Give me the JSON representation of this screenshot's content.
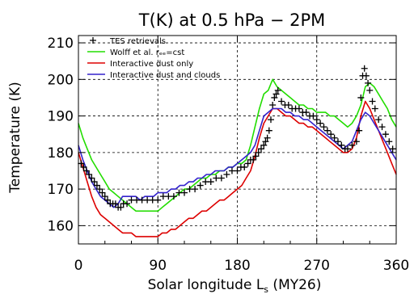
{
  "chart_data": {
    "type": "line",
    "title": "T(K) at 0.5 hPa − 2PM",
    "xlabel": "Solar longitude L",
    "xlabel_sub": "s",
    "xlabel_suffix": " (MY26)",
    "ylabel": "Temperature (K)",
    "xlim": [
      0,
      360
    ],
    "ylim": [
      155,
      212
    ],
    "xticks": [
      0,
      90,
      180,
      270,
      360
    ],
    "yticks": [
      160,
      170,
      180,
      190,
      200,
      210
    ],
    "grid": true,
    "legend_position": "top-left",
    "series": [
      {
        "name": "TES retrievals",
        "marker": "+",
        "color": "#000000",
        "x": [
          3,
          6,
          9,
          12,
          15,
          18,
          21,
          24,
          27,
          30,
          33,
          36,
          39,
          42,
          45,
          48,
          51,
          55,
          60,
          66,
          72,
          78,
          84,
          90,
          96,
          102,
          108,
          114,
          120,
          126,
          132,
          138,
          144,
          150,
          156,
          162,
          168,
          174,
          180,
          184,
          188,
          192,
          195,
          198,
          201,
          204,
          207,
          210,
          212,
          214,
          216,
          218,
          220,
          222,
          224,
          226,
          230,
          234,
          238,
          242,
          246,
          250,
          254,
          258,
          262,
          266,
          270,
          274,
          278,
          282,
          286,
          290,
          294,
          298,
          302,
          305,
          310,
          315,
          318,
          320,
          322,
          324,
          326,
          328,
          330,
          333,
          336,
          340,
          344,
          348,
          352,
          356
        ],
        "y": [
          177,
          176,
          175,
          174,
          173,
          172,
          171,
          170,
          169,
          168,
          167,
          166,
          166,
          166,
          165,
          165,
          166,
          166,
          167,
          167,
          167,
          167,
          167,
          167,
          168,
          168,
          168,
          169,
          169,
          170,
          170,
          171,
          172,
          172,
          173,
          173,
          174,
          175,
          175,
          176,
          176,
          177,
          178,
          178,
          179,
          180,
          181,
          182,
          183,
          184,
          186,
          189,
          193,
          195,
          196,
          197,
          194,
          193,
          193,
          192,
          192,
          192,
          191,
          191,
          190,
          190,
          189,
          188,
          187,
          186,
          185,
          184,
          183,
          182,
          181,
          181,
          182,
          183,
          186,
          195,
          201,
          203,
          201,
          199,
          197,
          194,
          192,
          189,
          187,
          185,
          183,
          181
        ]
      },
      {
        "name": "Wolff et al. rₑₑ=cst",
        "color": "#22dd00",
        "x": [
          0,
          5,
          10,
          15,
          20,
          25,
          30,
          35,
          40,
          45,
          50,
          55,
          60,
          65,
          70,
          75,
          80,
          85,
          90,
          95,
          100,
          105,
          110,
          115,
          120,
          125,
          130,
          135,
          140,
          145,
          150,
          155,
          160,
          165,
          170,
          175,
          180,
          185,
          190,
          195,
          200,
          205,
          210,
          215,
          220,
          225,
          230,
          235,
          240,
          245,
          250,
          255,
          260,
          265,
          270,
          275,
          280,
          285,
          290,
          295,
          300,
          305,
          310,
          315,
          320,
          325,
          330,
          335,
          340,
          345,
          350,
          355,
          360
        ],
        "y": [
          188,
          184,
          181,
          178,
          176,
          174,
          172,
          170,
          169,
          168,
          167,
          166,
          165,
          164,
          164,
          164,
          164,
          164,
          164,
          165,
          166,
          167,
          168,
          169,
          170,
          170,
          171,
          172,
          173,
          173,
          174,
          174,
          175,
          175,
          176,
          176,
          177,
          177,
          178,
          182,
          187,
          192,
          196,
          197,
          200,
          198,
          197,
          196,
          195,
          194,
          193,
          193,
          192,
          192,
          191,
          191,
          191,
          190,
          190,
          189,
          188,
          187,
          188,
          190,
          193,
          198,
          199,
          198,
          196,
          194,
          192,
          189,
          187
        ]
      },
      {
        "name": "Interactive dust only",
        "color": "#dd0000",
        "x": [
          0,
          5,
          10,
          15,
          20,
          25,
          30,
          35,
          40,
          45,
          50,
          55,
          60,
          65,
          70,
          75,
          80,
          85,
          90,
          95,
          100,
          105,
          110,
          115,
          120,
          125,
          130,
          135,
          140,
          145,
          150,
          155,
          160,
          165,
          170,
          175,
          180,
          185,
          190,
          195,
          200,
          205,
          210,
          215,
          220,
          225,
          230,
          235,
          240,
          245,
          250,
          255,
          260,
          265,
          270,
          275,
          280,
          285,
          290,
          295,
          300,
          305,
          310,
          315,
          320,
          325,
          330,
          335,
          340,
          345,
          350,
          355,
          360
        ],
        "y": [
          180,
          176,
          172,
          168,
          165,
          163,
          162,
          161,
          160,
          159,
          158,
          158,
          158,
          157,
          157,
          157,
          157,
          157,
          157,
          158,
          158,
          159,
          159,
          160,
          161,
          162,
          162,
          163,
          164,
          164,
          165,
          166,
          167,
          167,
          168,
          169,
          170,
          171,
          173,
          175,
          179,
          184,
          188,
          190,
          192,
          192,
          191,
          190,
          190,
          189,
          188,
          188,
          187,
          187,
          186,
          185,
          184,
          183,
          182,
          181,
          180,
          180,
          181,
          184,
          190,
          194,
          192,
          189,
          186,
          183,
          180,
          177,
          174
        ]
      },
      {
        "name": "Interactive dust and clouds",
        "color": "#3322cc",
        "x": [
          0,
          5,
          10,
          15,
          20,
          25,
          30,
          35,
          40,
          45,
          50,
          55,
          60,
          65,
          70,
          75,
          80,
          85,
          90,
          95,
          100,
          105,
          110,
          115,
          120,
          125,
          130,
          135,
          140,
          145,
          150,
          155,
          160,
          165,
          170,
          175,
          180,
          185,
          190,
          195,
          200,
          205,
          210,
          215,
          220,
          225,
          230,
          235,
          240,
          245,
          250,
          255,
          260,
          265,
          270,
          275,
          280,
          285,
          290,
          295,
          300,
          305,
          310,
          315,
          320,
          325,
          330,
          335,
          340,
          345,
          350,
          355,
          360
        ],
        "y": [
          182,
          178,
          175,
          172,
          170,
          168,
          167,
          166,
          165,
          166,
          168,
          168,
          168,
          168,
          167,
          168,
          168,
          168,
          169,
          169,
          169,
          170,
          170,
          171,
          171,
          172,
          172,
          173,
          173,
          174,
          174,
          175,
          175,
          175,
          176,
          176,
          177,
          178,
          179,
          180,
          182,
          186,
          190,
          191,
          192,
          192,
          192,
          191,
          191,
          190,
          190,
          189,
          189,
          188,
          187,
          186,
          185,
          184,
          183,
          182,
          181,
          182,
          183,
          186,
          189,
          191,
          190,
          188,
          186,
          184,
          182,
          180,
          178
        ]
      }
    ]
  }
}
